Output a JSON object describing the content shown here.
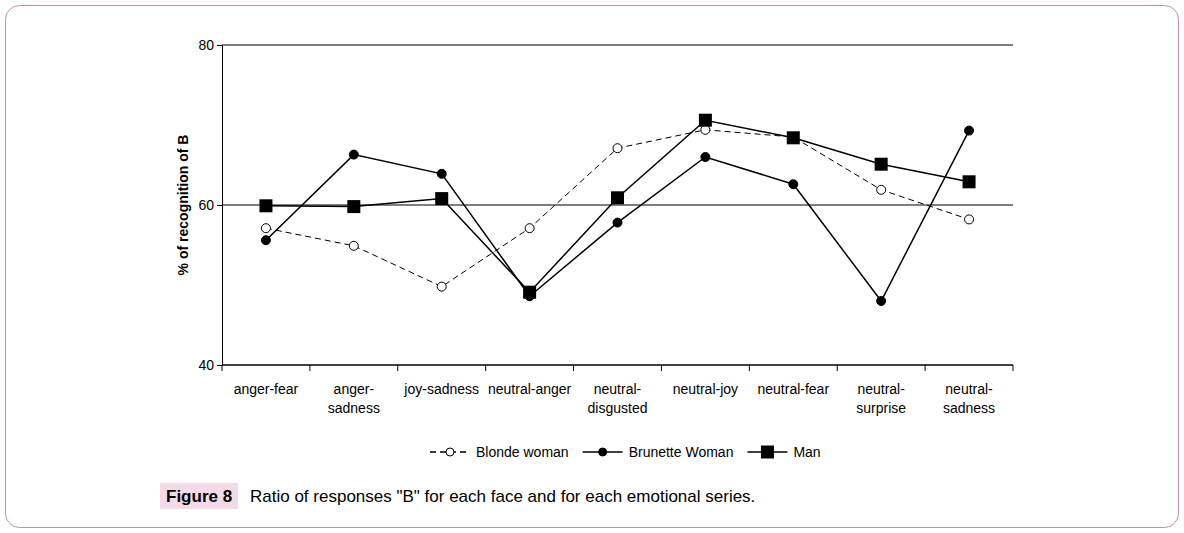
{
  "chart_data": {
    "type": "line",
    "title": "Figure 8",
    "subtitle": "Ratio of responses \"B\" for each face and for each emotional series.",
    "y_label": "% of recognition of B",
    "categories": [
      "anger-fear",
      "anger-\nsadness",
      "joy-sadness",
      "neutral-anger",
      "neutral-\ndisgusted",
      "neutral-joy",
      "neutral-fear",
      "neutral-\nsurprise",
      "neutral-\nsadness"
    ],
    "series": [
      {
        "name": "Blonde woman",
        "color": "#000000",
        "marker": "open-circle",
        "line_style": "dashed",
        "values": [
          57.1,
          54.9,
          49.8,
          57.1,
          67.1,
          69.4,
          68.5,
          61.9,
          58.2
        ]
      },
      {
        "name": "Brunette Woman",
        "color": "#000000",
        "marker": "circle",
        "line_style": "solid",
        "values": [
          55.6,
          66.3,
          63.9,
          48.6,
          57.8,
          66.0,
          62.6,
          48.0,
          69.3
        ]
      },
      {
        "name": "Man",
        "color": "#000000",
        "marker": "square",
        "line_style": "solid",
        "values": [
          59.9,
          59.8,
          60.8,
          49.1,
          60.9,
          70.6,
          68.4,
          65.1,
          62.9
        ]
      }
    ],
    "ylim": [
      40,
      80
    ],
    "yticks": [
      40,
      60,
      80
    ],
    "grid": true,
    "legend": "bottom"
  }
}
